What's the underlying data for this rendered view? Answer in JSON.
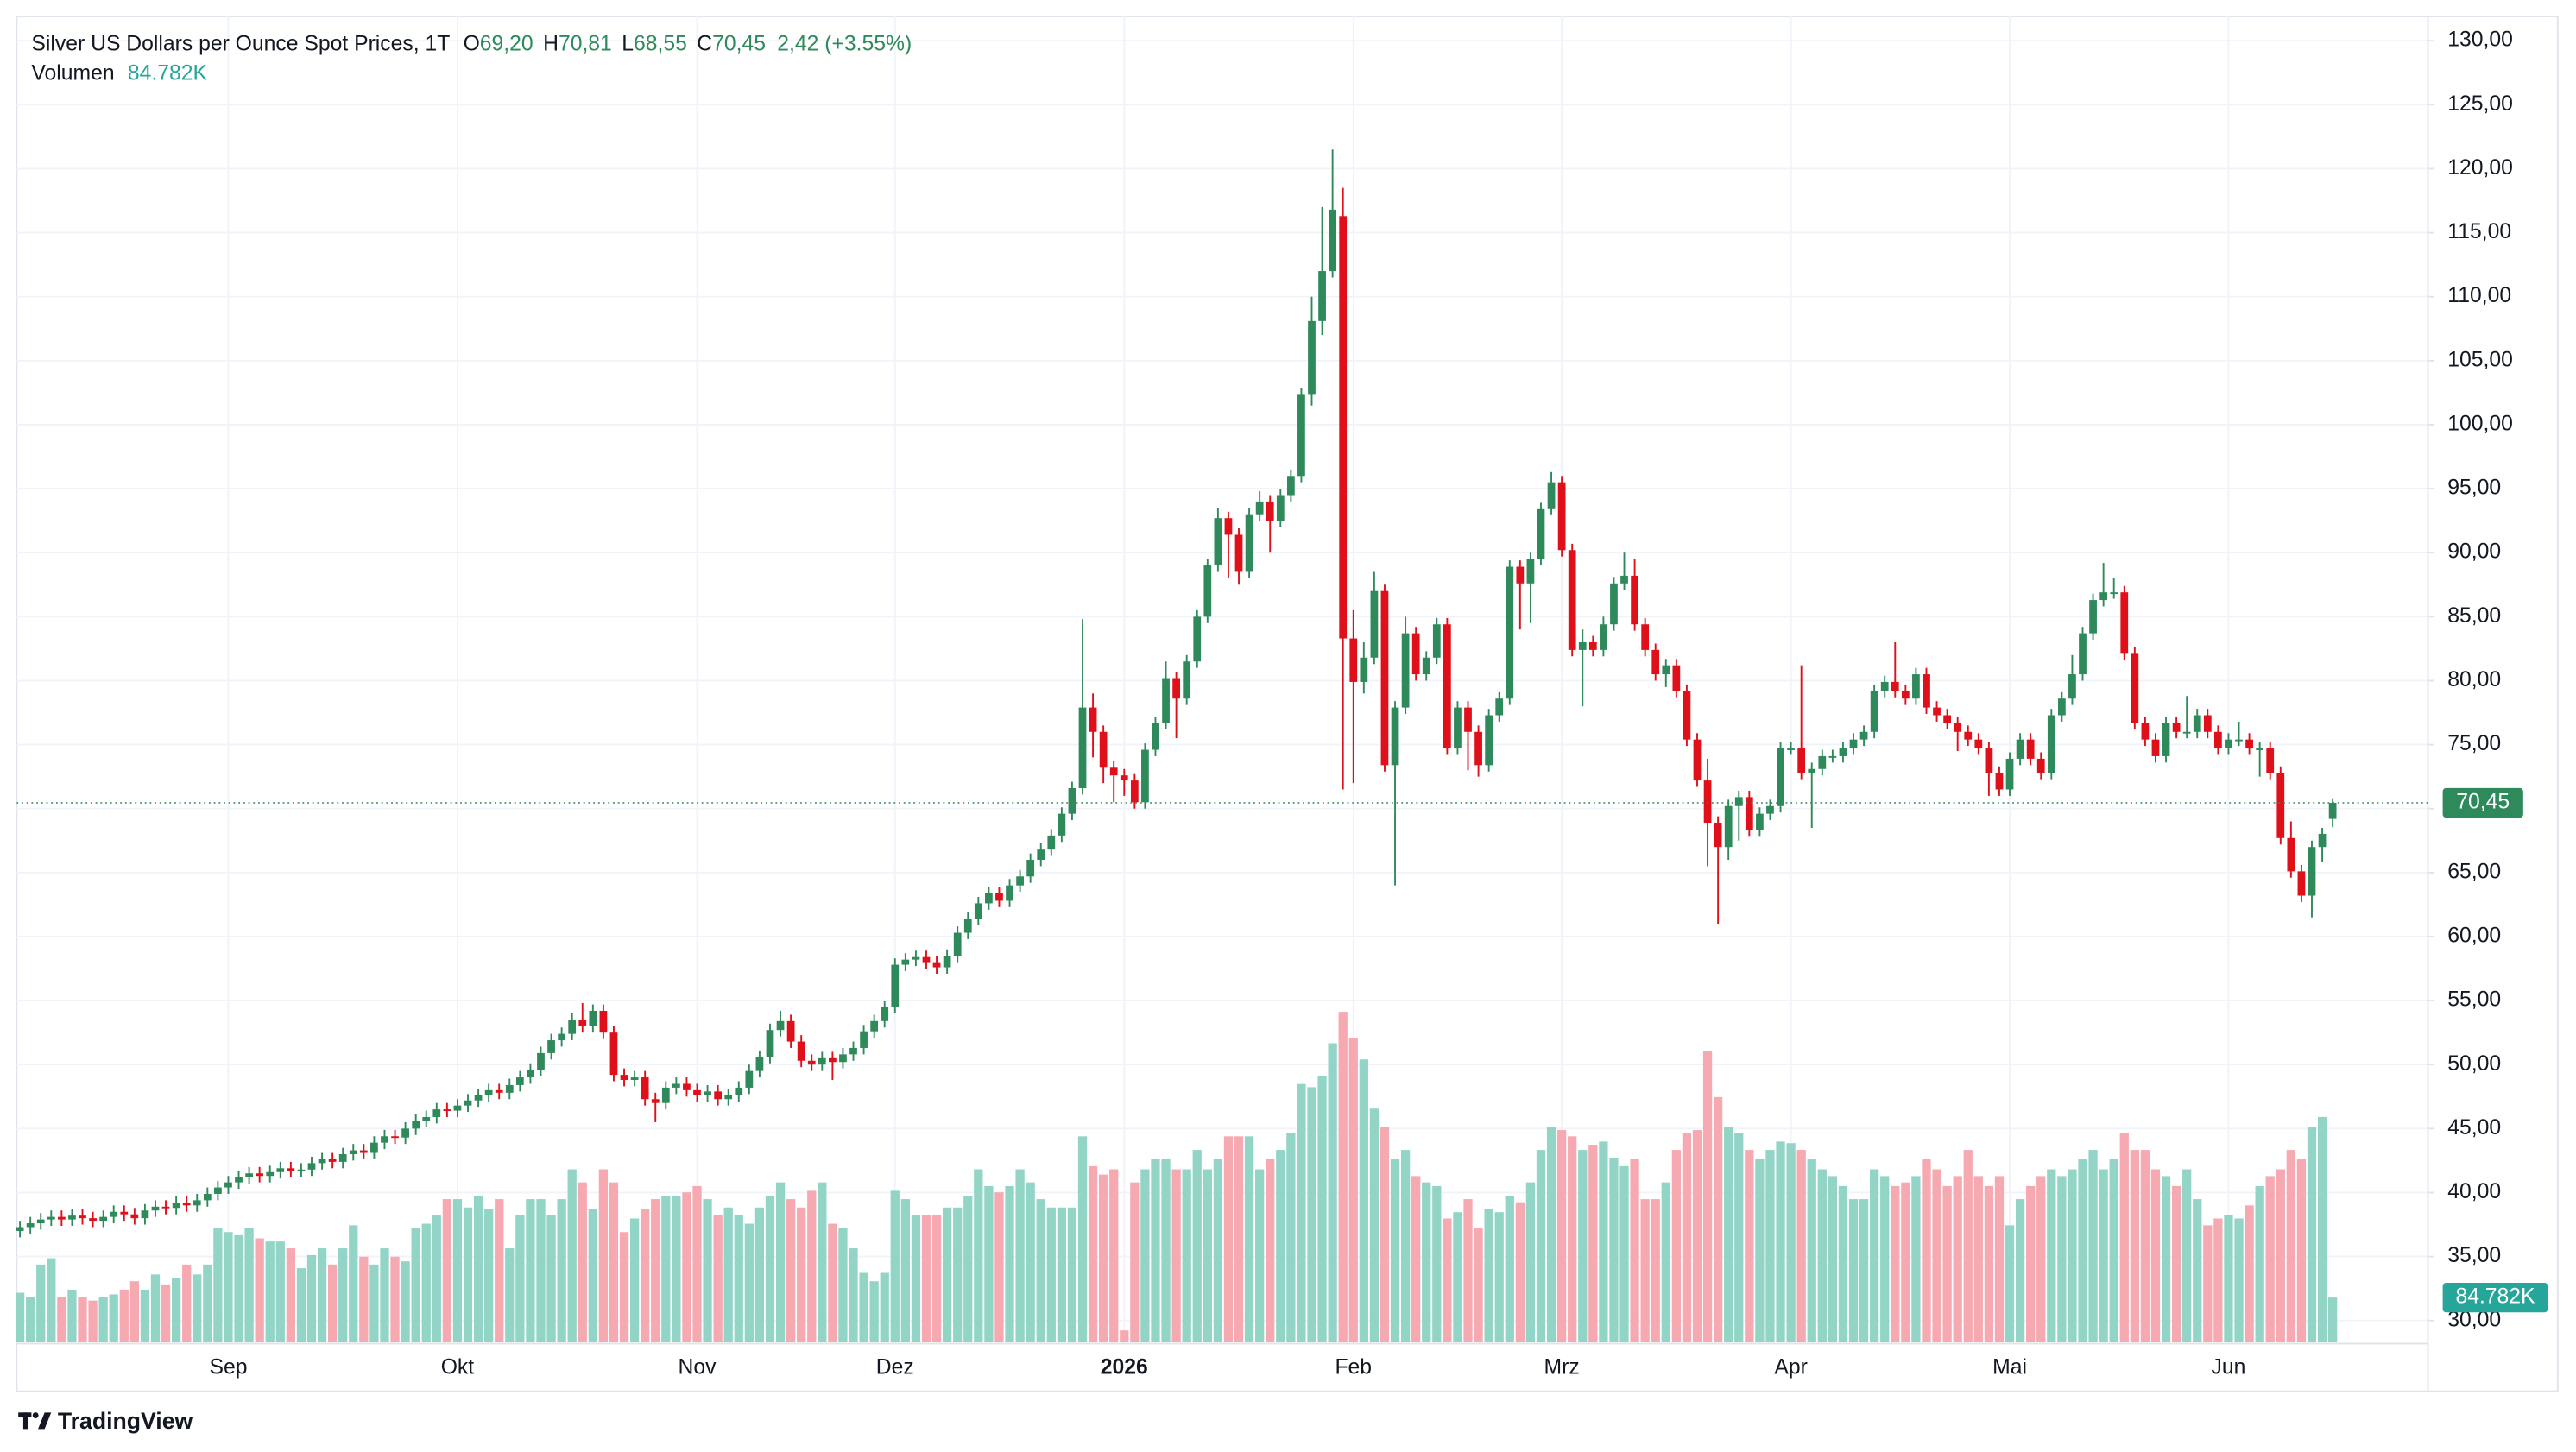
{
  "chart_data": {
    "type": "candlestick",
    "title": "Silver US Dollars per Ounce Spot Prices, 1T",
    "ohlc_labels": [
      {
        "key": "O",
        "value": "69,20"
      },
      {
        "key": "H",
        "value": "70,81"
      },
      {
        "key": "L",
        "value": "68,55"
      },
      {
        "key": "C",
        "value": "70,45"
      }
    ],
    "change_label": "2,42 (+3.55%)",
    "volume_title": "Volumen",
    "last_volume_label": "84.782K",
    "last_close_label": "70,45",
    "branding": "TradingView",
    "up_color": "#2f8a5b",
    "down_color": "#e0101a",
    "volume_up_color": "#92d5c7",
    "volume_down_color": "#f7a9b1",
    "grid": true,
    "ylim": [
      28.2,
      131.9
    ],
    "yticks": [
      {
        "value": 30,
        "label": "30,00"
      },
      {
        "value": 35,
        "label": "35,00"
      },
      {
        "value": 40,
        "label": "40,00"
      },
      {
        "value": 45,
        "label": "45,00"
      },
      {
        "value": 50,
        "label": "50,00"
      },
      {
        "value": 55,
        "label": "55,00"
      },
      {
        "value": 60,
        "label": "60,00"
      },
      {
        "value": 65,
        "label": "65,00"
      },
      {
        "value": 70,
        "label": "70,00"
      },
      {
        "value": 75,
        "label": "75,00"
      },
      {
        "value": 80,
        "label": "80,00"
      },
      {
        "value": 85,
        "label": "85,00"
      },
      {
        "value": 90,
        "label": "90,00"
      },
      {
        "value": 95,
        "label": "95,00"
      },
      {
        "value": 100,
        "label": "100,00"
      },
      {
        "value": 105,
        "label": "105,00"
      },
      {
        "value": 110,
        "label": "110,00"
      },
      {
        "value": 115,
        "label": "115,00"
      },
      {
        "value": 120,
        "label": "120,00"
      },
      {
        "value": 125,
        "label": "125,00"
      },
      {
        "value": 130,
        "label": "130,00"
      }
    ],
    "categories": [
      null,
      null,
      null,
      null,
      null,
      null,
      null,
      null,
      null,
      null,
      null,
      null,
      null,
      null,
      null,
      null,
      null,
      null,
      null,
      null,
      "Sep",
      null,
      null,
      null,
      null,
      null,
      null,
      null,
      null,
      null,
      null,
      null,
      null,
      null,
      null,
      null,
      null,
      null,
      null,
      null,
      null,
      null,
      "Okt",
      null,
      null,
      null,
      null,
      null,
      null,
      null,
      null,
      null,
      null,
      null,
      null,
      null,
      null,
      null,
      null,
      null,
      null,
      null,
      null,
      null,
      null,
      "Nov",
      null,
      null,
      null,
      null,
      null,
      null,
      null,
      null,
      null,
      null,
      null,
      null,
      null,
      null,
      null,
      null,
      null,
      null,
      "Dez",
      null,
      null,
      null,
      null,
      null,
      null,
      null,
      null,
      null,
      null,
      null,
      null,
      null,
      null,
      null,
      null,
      null,
      null,
      null,
      null,
      null,
      "2026",
      null,
      null,
      null,
      null,
      null,
      null,
      null,
      null,
      null,
      null,
      null,
      null,
      null,
      null,
      null,
      null,
      null,
      null,
      null,
      null,
      null,
      "Feb",
      null,
      null,
      null,
      null,
      null,
      null,
      null,
      null,
      null,
      null,
      null,
      null,
      null,
      null,
      null,
      null,
      null,
      null,
      null,
      "Mrz",
      null,
      null,
      null,
      null,
      null,
      null,
      null,
      null,
      null,
      null,
      null,
      null,
      null,
      null,
      null,
      null,
      null,
      null,
      null,
      null,
      null,
      "Apr",
      null,
      null,
      null,
      null,
      null,
      null,
      null,
      null,
      null,
      null,
      null,
      null,
      null,
      null,
      null,
      null,
      null,
      null,
      null,
      null,
      "Mai",
      null,
      null,
      null,
      null,
      null,
      null,
      null,
      null,
      null,
      null,
      null,
      null,
      null,
      null,
      null,
      null,
      null,
      null,
      null,
      null,
      "Jun",
      null,
      null,
      null,
      null,
      null,
      null,
      null,
      null,
      null,
      null
    ],
    "open": [
      37.0,
      37.3,
      37.6,
      37.9,
      38.1,
      37.9,
      38.2,
      38.0,
      37.8,
      38.1,
      38.5,
      38.3,
      38.0,
      38.6,
      38.9,
      38.8,
      39.2,
      39.0,
      39.4,
      39.9,
      40.4,
      40.8,
      41.2,
      41.5,
      41.3,
      41.6,
      41.9,
      41.7,
      41.8,
      42.3,
      42.6,
      42.4,
      43.0,
      43.3,
      43.1,
      43.9,
      44.4,
      44.3,
      45.0,
      45.6,
      45.9,
      46.5,
      46.4,
      46.8,
      47.2,
      47.6,
      48.0,
      47.8,
      48.4,
      49.0,
      49.6,
      50.9,
      51.9,
      52.4,
      53.5,
      53.0,
      54.2,
      52.5,
      49.2,
      48.8,
      49.0,
      47.3,
      47.0,
      48.2,
      48.5,
      48.0,
      47.6,
      47.9,
      47.3,
      47.6,
      48.2,
      49.5,
      50.6,
      52.7,
      53.4,
      51.8,
      50.3,
      50.0,
      50.5,
      50.2,
      50.8,
      51.3,
      52.6,
      53.4,
      54.5,
      57.8,
      58.2,
      58.4,
      58.0,
      57.6,
      58.5,
      60.3,
      61.4,
      62.6,
      63.4,
      62.8,
      64.0,
      64.7,
      66.0,
      66.8,
      67.9,
      69.6,
      71.6,
      77.9,
      76.0,
      73.2,
      72.6,
      72.2,
      70.5,
      74.6,
      76.7,
      80.2,
      78.6,
      81.5,
      85.0,
      89.0,
      92.7,
      91.4,
      88.5,
      93.0,
      94.0,
      92.5,
      94.5,
      96.0,
      102.4,
      108.1,
      112.0,
      116.3,
      83.3,
      79.9,
      81.8,
      87.0,
      73.4,
      77.9,
      83.7,
      80.5,
      81.8,
      84.4,
      74.7,
      77.9,
      76.0,
      73.4,
      77.3,
      78.6,
      88.9,
      87.6,
      89.5,
      93.4,
      95.5,
      90.2,
      82.4,
      83.0,
      82.4,
      84.4,
      87.6,
      88.2,
      84.4,
      82.4,
      80.5,
      81.2,
      79.2,
      75.4,
      72.2,
      68.9,
      67.0,
      70.2,
      70.9,
      68.3,
      69.6,
      70.2,
      74.7,
      74.7,
      72.8,
      73.1,
      74.1,
      74.1,
      74.7,
      75.4,
      76.0,
      79.2,
      79.9,
      79.2,
      78.6,
      80.5,
      77.9,
      77.3,
      76.7,
      76.0,
      75.4,
      74.7,
      72.8,
      71.5,
      73.9,
      75.4,
      73.9,
      72.8,
      77.3,
      78.6,
      80.5,
      83.7,
      86.3,
      86.9,
      86.9,
      82.1,
      76.7,
      75.4,
      74.1,
      76.7,
      76.0,
      76.0,
      77.3,
      76.0,
      74.7,
      75.4,
      75.4,
      74.7,
      74.7,
      72.8,
      67.7,
      65.1,
      63.2,
      67.0,
      69.2
    ],
    "high": [
      37.8,
      38.1,
      38.4,
      38.6,
      38.6,
      38.7,
      38.7,
      38.5,
      38.6,
      39.0,
      39.0,
      38.8,
      39.1,
      39.4,
      39.4,
      39.7,
      39.7,
      39.9,
      40.4,
      40.9,
      41.3,
      41.7,
      42.0,
      42.0,
      42.1,
      42.4,
      42.4,
      42.3,
      42.8,
      43.1,
      43.1,
      43.5,
      43.8,
      43.8,
      44.4,
      44.9,
      44.9,
      45.5,
      46.1,
      46.4,
      47.0,
      47.0,
      47.3,
      47.7,
      48.1,
      48.5,
      48.5,
      48.9,
      49.5,
      50.1,
      51.4,
      52.4,
      52.9,
      54.0,
      54.8,
      54.7,
      54.7,
      53.0,
      49.7,
      49.5,
      49.5,
      47.8,
      48.7,
      49.0,
      49.0,
      48.5,
      48.4,
      48.4,
      48.1,
      48.7,
      50.0,
      51.1,
      53.2,
      54.2,
      53.9,
      52.3,
      50.8,
      51.0,
      51.0,
      51.3,
      51.8,
      53.1,
      53.9,
      55.0,
      58.3,
      58.7,
      58.9,
      58.9,
      58.5,
      59.0,
      60.8,
      61.9,
      63.1,
      63.9,
      63.9,
      64.5,
      65.2,
      66.5,
      67.3,
      68.4,
      70.1,
      72.1,
      84.8,
      79.0,
      76.5,
      73.7,
      73.1,
      72.7,
      75.1,
      77.2,
      81.5,
      80.7,
      82.0,
      85.5,
      89.5,
      93.5,
      93.2,
      91.9,
      93.5,
      94.8,
      94.5,
      95.0,
      96.5,
      102.9,
      110.0,
      117.0,
      121.5,
      118.5,
      85.5,
      83.0,
      88.5,
      87.5,
      78.4,
      85.0,
      84.2,
      82.3,
      84.9,
      84.9,
      78.4,
      78.4,
      76.5,
      77.8,
      79.1,
      89.4,
      89.4,
      90.0,
      93.9,
      96.3,
      96.0,
      90.7,
      84.0,
      83.5,
      85.0,
      88.1,
      90.0,
      89.5,
      84.9,
      82.9,
      81.7,
      81.7,
      79.7,
      75.9,
      73.9,
      69.4,
      70.7,
      71.4,
      71.4,
      70.1,
      70.7,
      75.2,
      75.2,
      81.2,
      73.6,
      74.6,
      74.6,
      75.2,
      75.9,
      76.5,
      79.7,
      80.4,
      83.0,
      79.7,
      81.0,
      81.0,
      78.4,
      77.8,
      77.2,
      76.5,
      75.9,
      75.2,
      73.3,
      74.4,
      75.9,
      75.9,
      74.4,
      77.8,
      79.1,
      82.0,
      84.2,
      86.8,
      89.2,
      88.0,
      87.4,
      82.6,
      77.2,
      75.9,
      77.2,
      77.2,
      78.8,
      77.8,
      77.8,
      76.5,
      75.9,
      76.8,
      75.9,
      75.2,
      75.2,
      73.3,
      69.0,
      65.6,
      67.5,
      68.5,
      70.81
    ],
    "low": [
      36.5,
      36.8,
      37.1,
      37.4,
      37.4,
      37.4,
      37.5,
      37.3,
      37.3,
      37.6,
      37.8,
      37.5,
      37.5,
      38.1,
      38.3,
      38.3,
      38.5,
      38.5,
      38.9,
      39.4,
      39.9,
      40.3,
      40.7,
      40.8,
      40.8,
      41.1,
      41.2,
      41.2,
      41.3,
      41.8,
      41.9,
      41.9,
      42.5,
      42.6,
      42.6,
      43.4,
      43.8,
      43.8,
      44.5,
      45.1,
      45.4,
      45.9,
      45.9,
      46.3,
      46.7,
      47.1,
      47.3,
      47.3,
      47.9,
      48.5,
      49.1,
      50.4,
      51.4,
      51.9,
      52.5,
      52.5,
      52.0,
      48.7,
      48.3,
      48.3,
      46.8,
      45.5,
      46.5,
      47.7,
      47.5,
      47.1,
      47.1,
      46.8,
      46.8,
      47.1,
      47.7,
      49.0,
      50.1,
      52.2,
      51.3,
      49.8,
      49.5,
      49.5,
      48.8,
      49.7,
      50.3,
      50.8,
      52.1,
      52.9,
      54.0,
      57.3,
      57.7,
      57.5,
      57.1,
      57.1,
      58.0,
      59.8,
      60.9,
      62.1,
      62.3,
      62.3,
      63.5,
      64.2,
      65.5,
      66.3,
      67.4,
      69.1,
      71.1,
      74.0,
      72.0,
      70.5,
      71.0,
      70.0,
      70.0,
      74.1,
      76.2,
      75.5,
      78.1,
      81.0,
      84.5,
      88.5,
      88.0,
      87.5,
      88.0,
      92.5,
      90.0,
      92.0,
      94.0,
      95.5,
      101.5,
      107.0,
      111.5,
      71.5,
      72.0,
      79.0,
      81.3,
      72.9,
      64.0,
      77.4,
      80.0,
      80.0,
      81.3,
      74.2,
      74.2,
      73.0,
      72.5,
      72.9,
      76.8,
      78.1,
      84.0,
      84.5,
      89.0,
      93.0,
      89.7,
      81.9,
      78.0,
      81.9,
      81.9,
      83.9,
      87.1,
      83.9,
      81.9,
      80.0,
      79.5,
      78.7,
      74.9,
      71.7,
      65.5,
      61.0,
      66.0,
      67.5,
      67.8,
      67.8,
      69.1,
      69.7,
      74.2,
      72.3,
      68.5,
      72.6,
      73.6,
      73.6,
      74.2,
      74.9,
      75.5,
      78.7,
      78.7,
      78.1,
      78.1,
      77.4,
      76.8,
      76.2,
      74.5,
      74.9,
      74.2,
      71.0,
      71.0,
      71.0,
      73.4,
      73.4,
      72.3,
      72.3,
      76.8,
      78.1,
      80.0,
      83.2,
      85.8,
      86.4,
      81.6,
      76.2,
      74.9,
      73.6,
      73.6,
      75.5,
      75.5,
      75.5,
      75.5,
      74.2,
      74.2,
      74.9,
      74.2,
      72.5,
      72.3,
      67.2,
      64.6,
      62.7,
      61.5,
      65.8,
      68.55
    ],
    "close": [
      37.3,
      37.6,
      37.9,
      38.1,
      37.9,
      38.2,
      38.0,
      37.8,
      38.1,
      38.5,
      38.3,
      38.0,
      38.6,
      38.9,
      38.8,
      39.2,
      39.0,
      39.4,
      39.9,
      40.4,
      40.8,
      41.2,
      41.5,
      41.3,
      41.6,
      41.9,
      41.7,
      41.8,
      42.3,
      42.6,
      42.4,
      43.0,
      43.3,
      43.1,
      43.9,
      44.4,
      44.3,
      45.0,
      45.6,
      45.9,
      46.5,
      46.4,
      46.8,
      47.2,
      47.6,
      48.0,
      47.8,
      48.4,
      49.0,
      49.6,
      50.9,
      51.9,
      52.4,
      53.5,
      53.0,
      54.2,
      52.5,
      49.2,
      48.8,
      49.0,
      47.3,
      47.0,
      48.2,
      48.5,
      48.0,
      47.6,
      47.9,
      47.3,
      47.6,
      48.2,
      49.5,
      50.6,
      52.7,
      53.4,
      51.8,
      50.3,
      50.0,
      50.5,
      50.2,
      50.8,
      51.3,
      52.6,
      53.4,
      54.5,
      57.8,
      58.2,
      58.4,
      58.0,
      57.6,
      58.5,
      60.3,
      61.4,
      62.6,
      63.4,
      62.8,
      64.0,
      64.7,
      66.0,
      66.8,
      67.9,
      69.6,
      71.6,
      77.9,
      76.0,
      73.2,
      72.6,
      72.2,
      70.5,
      74.6,
      76.7,
      80.2,
      78.6,
      81.5,
      85.0,
      89.0,
      92.7,
      91.4,
      88.5,
      93.0,
      94.0,
      92.5,
      94.5,
      96.0,
      102.4,
      108.1,
      112.0,
      116.8,
      83.3,
      79.9,
      81.8,
      87.0,
      73.4,
      77.9,
      83.7,
      80.5,
      81.8,
      84.4,
      74.7,
      77.9,
      76.0,
      73.4,
      77.3,
      78.6,
      88.9,
      87.6,
      89.5,
      93.4,
      95.5,
      90.2,
      82.4,
      83.0,
      82.4,
      84.4,
      87.6,
      88.2,
      84.4,
      82.4,
      80.5,
      81.2,
      79.2,
      75.4,
      72.2,
      68.9,
      67.0,
      70.2,
      70.9,
      68.3,
      69.6,
      70.2,
      74.7,
      74.7,
      72.8,
      73.1,
      74.1,
      74.1,
      74.7,
      75.4,
      76.0,
      79.2,
      79.9,
      79.2,
      78.6,
      80.5,
      77.9,
      77.3,
      76.7,
      76.0,
      75.4,
      74.7,
      72.8,
      71.5,
      73.9,
      75.4,
      73.9,
      72.8,
      77.3,
      78.6,
      80.5,
      83.7,
      86.3,
      86.9,
      86.9,
      82.1,
      76.7,
      75.4,
      74.1,
      76.7,
      76.0,
      76.0,
      77.3,
      76.0,
      74.7,
      75.4,
      75.4,
      74.7,
      74.7,
      72.8,
      67.7,
      65.1,
      63.2,
      67.0,
      68.03,
      70.45
    ],
    "volume": [
      94000,
      85000,
      148000,
      160000,
      85000,
      100000,
      85000,
      79000,
      85000,
      91000,
      100000,
      116000,
      100000,
      129000,
      110000,
      122000,
      148000,
      129000,
      148000,
      217000,
      210000,
      204000,
      217000,
      198000,
      192000,
      192000,
      179000,
      141000,
      166000,
      179000,
      148000,
      179000,
      223000,
      163000,
      148000,
      179000,
      163000,
      154000,
      217000,
      226000,
      242000,
      273000,
      273000,
      257000,
      279000,
      254000,
      273000,
      179000,
      242000,
      273000,
      273000,
      242000,
      273000,
      330000,
      305000,
      254000,
      330000,
      305000,
      210000,
      236000,
      254000,
      273000,
      279000,
      279000,
      286000,
      298000,
      273000,
      242000,
      257000,
      242000,
      226000,
      257000,
      279000,
      305000,
      273000,
      257000,
      289000,
      305000,
      226000,
      217000,
      179000,
      132000,
      116000,
      132000,
      289000,
      273000,
      242000,
      242000,
      242000,
      257000,
      257000,
      279000,
      330000,
      298000,
      286000,
      298000,
      330000,
      305000,
      273000,
      257000,
      257000,
      257000,
      393000,
      336000,
      320000,
      330000,
      22000,
      305000,
      330000,
      349000,
      349000,
      330000,
      330000,
      367000,
      330000,
      349000,
      393000,
      393000,
      393000,
      330000,
      349000,
      367000,
      399000,
      493000,
      487000,
      509000,
      571000,
      631000,
      581000,
      540000,
      446000,
      411000,
      349000,
      367000,
      317000,
      305000,
      298000,
      236000,
      248000,
      273000,
      217000,
      254000,
      248000,
      279000,
      267000,
      305000,
      367000,
      411000,
      405000,
      393000,
      367000,
      377000,
      383000,
      352000,
      336000,
      349000,
      273000,
      273000,
      305000,
      367000,
      399000,
      405000,
      556000,
      468000,
      411000,
      399000,
      367000,
      349000,
      367000,
      383000,
      380000,
      367000,
      349000,
      330000,
      317000,
      298000,
      273000,
      273000,
      330000,
      317000,
      298000,
      305000,
      317000,
      349000,
      330000,
      298000,
      317000,
      367000,
      317000,
      298000,
      317000,
      223000,
      273000,
      298000,
      317000,
      330000,
      317000,
      330000,
      349000,
      367000,
      330000,
      349000,
      399000,
      367000,
      367000,
      330000,
      317000,
      298000,
      330000,
      273000,
      223000,
      236000,
      242000,
      236000,
      261000,
      298000,
      317000,
      330000,
      367000,
      349000,
      411000,
      430000,
      84782
    ]
  }
}
